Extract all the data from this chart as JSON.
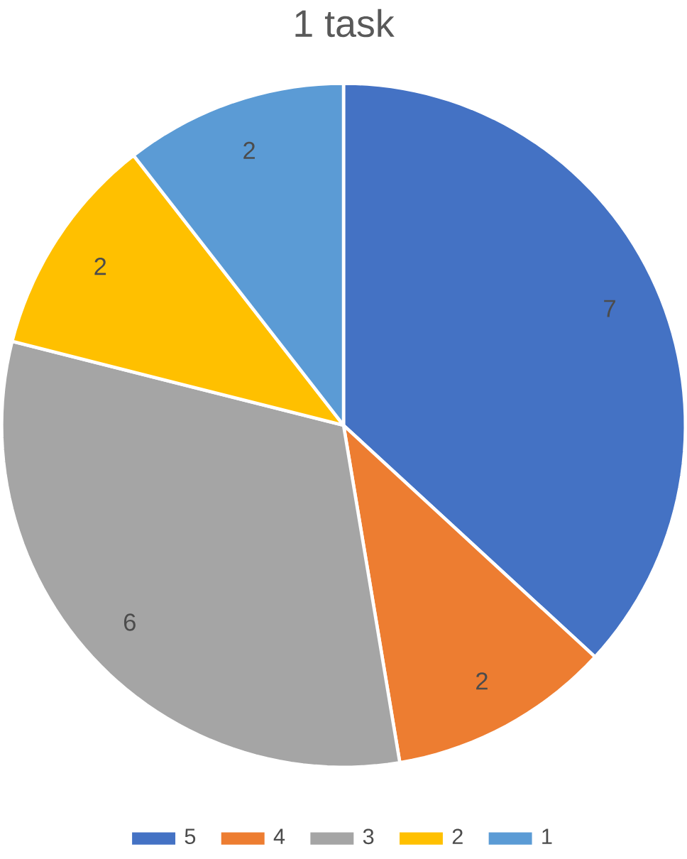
{
  "chart_data": {
    "type": "pie",
    "title": "1 task",
    "categories": [
      "5",
      "4",
      "3",
      "2",
      "1"
    ],
    "values": [
      7,
      2,
      6,
      2,
      2
    ],
    "colors": [
      "#4472c4",
      "#ed7d31",
      "#a5a5a5",
      "#ffc000",
      "#5b9bd5"
    ],
    "data_labels": true,
    "legend": "bottom"
  }
}
